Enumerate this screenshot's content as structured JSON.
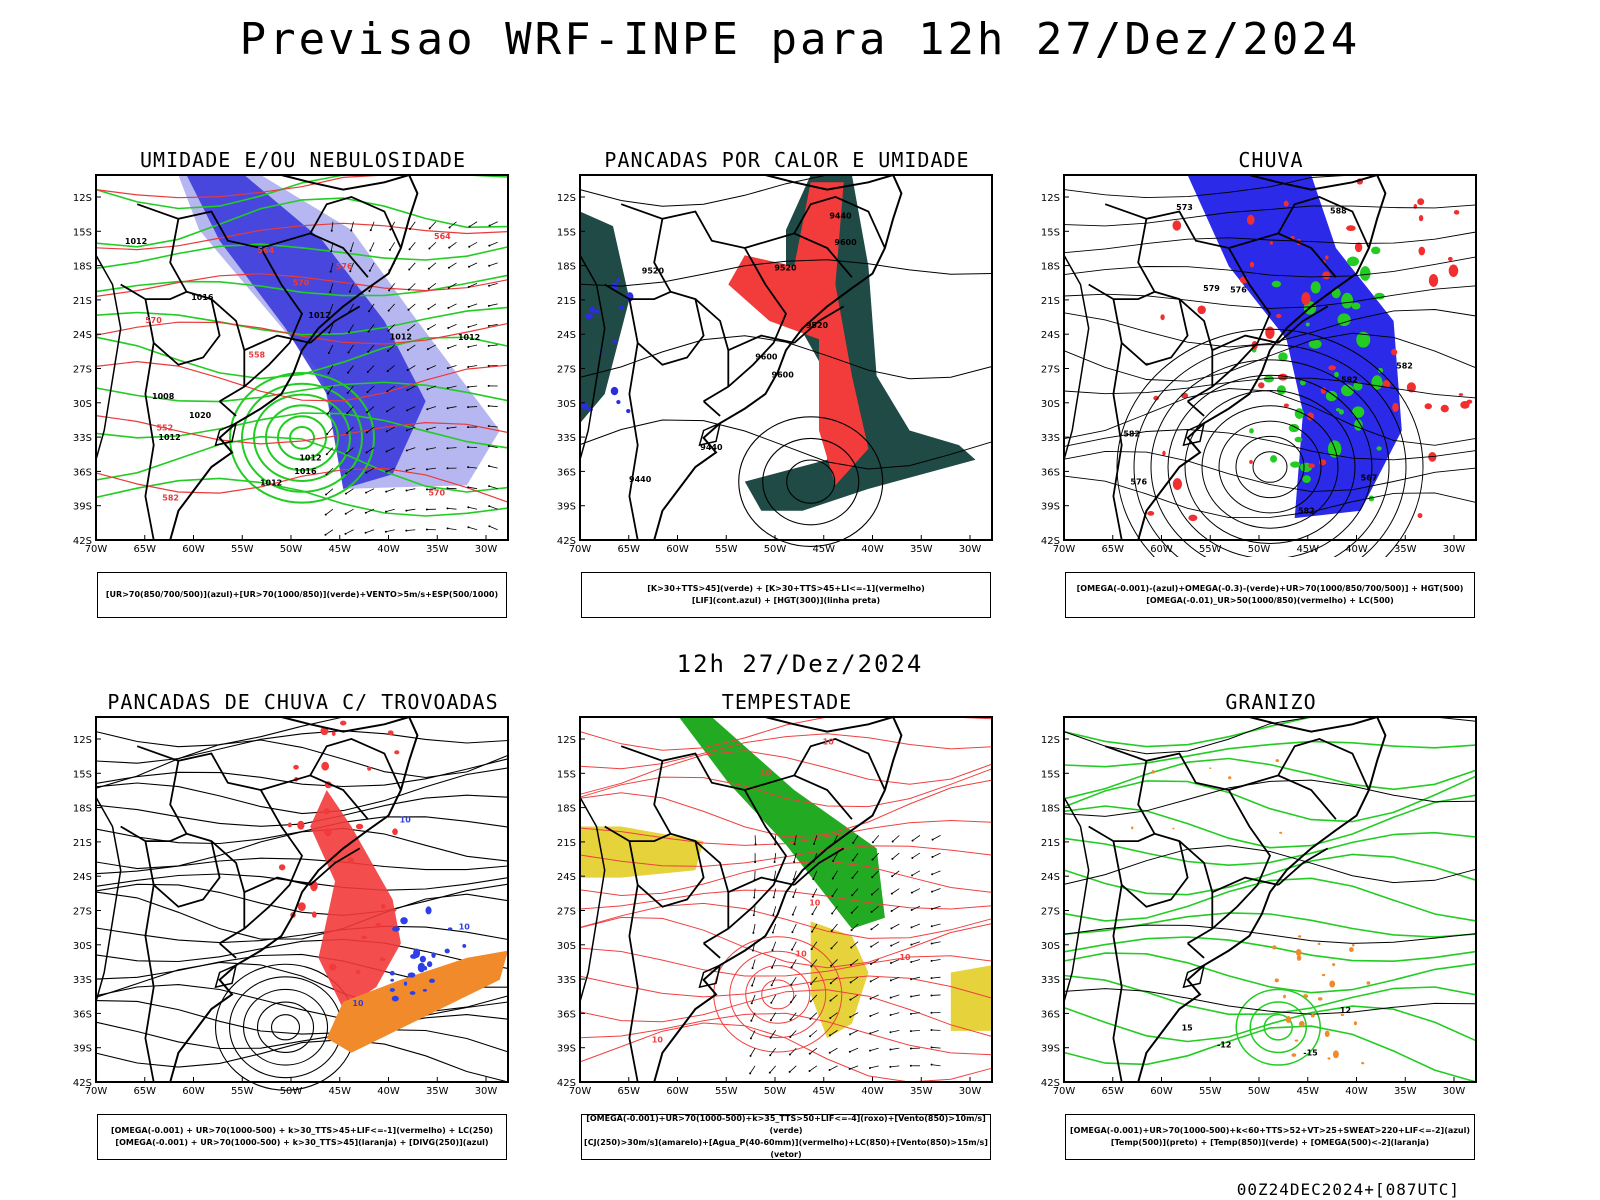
{
  "title": "Previsao WRF-INPE  para 12h 27/Dez/2024",
  "subtitle": "12h 27/Dez/2024",
  "footer": "00Z24DEC2024+[087UTC]",
  "lat_labels": [
    "12S",
    "15S",
    "18S",
    "21S",
    "24S",
    "27S",
    "30S",
    "33S",
    "36S",
    "39S",
    "42S"
  ],
  "lon_labels": [
    "70W",
    "65W",
    "60W",
    "55W",
    "50W",
    "45W",
    "40W",
    "35W",
    "30W"
  ],
  "panels": [
    {
      "title": "UMIDADE E/OU NEBULOSIDADE",
      "legend": [
        "[UR>70(850/700/500)](azul)+[UR>70(1000/850)](verde)+VENTO>5m/s+ESP(500/1000)"
      ],
      "field_colors": [
        "#3b3bdc",
        "#a9a9ef",
        "#22cc22",
        "#e83a3a"
      ],
      "contour_labels": [
        "1012",
        "1012",
        "1012",
        "1012",
        "1012",
        "1012",
        "1016",
        "1008",
        "1012",
        "1016",
        "1020",
        "570",
        "570",
        "564",
        "558",
        "576",
        "582",
        "564",
        "570",
        "552"
      ]
    },
    {
      "title": "PANCADAS POR CALOR E UMIDADE",
      "legend": [
        "[K>30+TTS>45](verde) + [K>30+TTS>45+LI<=-1](vermelho)",
        "[LIF](cont.azul) + [HGT(300)](linha preta)"
      ],
      "field_colors": [
        "#1f4a45",
        "#f23c3c",
        "#2d2de0"
      ],
      "contour_labels": [
        "9600",
        "9520",
        "9600",
        "9440",
        "9520",
        "9440",
        "9440",
        "9520",
        "9600"
      ]
    },
    {
      "title": "CHUVA",
      "legend": [
        "[OMEGA(-0.001)-(azul)+OMEGA(-0.3)-(verde)+UR>70(1000/850/700/500)] + HGT(500)",
        "[OMEGA(-0.01)_UR>50(1000/850)(vermelho) + LC(500)"
      ],
      "field_colors": [
        "#2a2ae8",
        "#22cc22",
        "#f03030"
      ],
      "contour_labels": [
        "582",
        "582",
        "576",
        "573",
        "576",
        "567",
        "582",
        "588",
        "579",
        "582"
      ]
    },
    {
      "title": "PANCADAS DE CHUVA C/ TROVOADAS",
      "legend": [
        "[OMEGA(-0.001) + UR>70(1000-500) + k>30_TTS>45+LIF<=-1](vermelho) + LC(250)",
        "[OMEGA(-0.001) + UR>70(1000-500) + k>30_TTS>45](laranja) + [DIVG(250)](azul)"
      ],
      "field_colors": [
        "#f23a3a",
        "#f08a2a",
        "#2f3fe8"
      ],
      "contour_labels": [
        "10",
        "10",
        "10"
      ]
    },
    {
      "title": "TEMPESTADE",
      "legend": [
        "[OMEGA(-0.001)+UR>70(1000-500)+k>35_TTS>50+LIF<=-4](roxo)+[Vento(850)>10m/s](verde)",
        "[CJ(250)>30m/s](amarelo)+[Agua_P(40-60mm)](vermelho)+LC(850)+[Vento(850)>15m/s](vetor)"
      ],
      "field_colors": [
        "#e6d23a",
        "#22aa22",
        "#f04040"
      ],
      "contour_labels": [
        "10",
        "10",
        "10",
        "10",
        "10",
        "10"
      ]
    },
    {
      "title": "GRANIZO",
      "legend": [
        "[OMEGA(-0.001)+UR>70(1000-500)+k<60+TTS>52+VT>25+SWEAT>220+LIF<=-2](azul)",
        "[Temp(500)](preto) + [Temp(850)](verde) + [OMEGA(500)<-2](laranja)"
      ],
      "field_colors": [
        "#22cc22",
        "#f08a2a"
      ],
      "contour_labels": [
        "-12",
        "-15",
        "15",
        "12"
      ]
    }
  ]
}
